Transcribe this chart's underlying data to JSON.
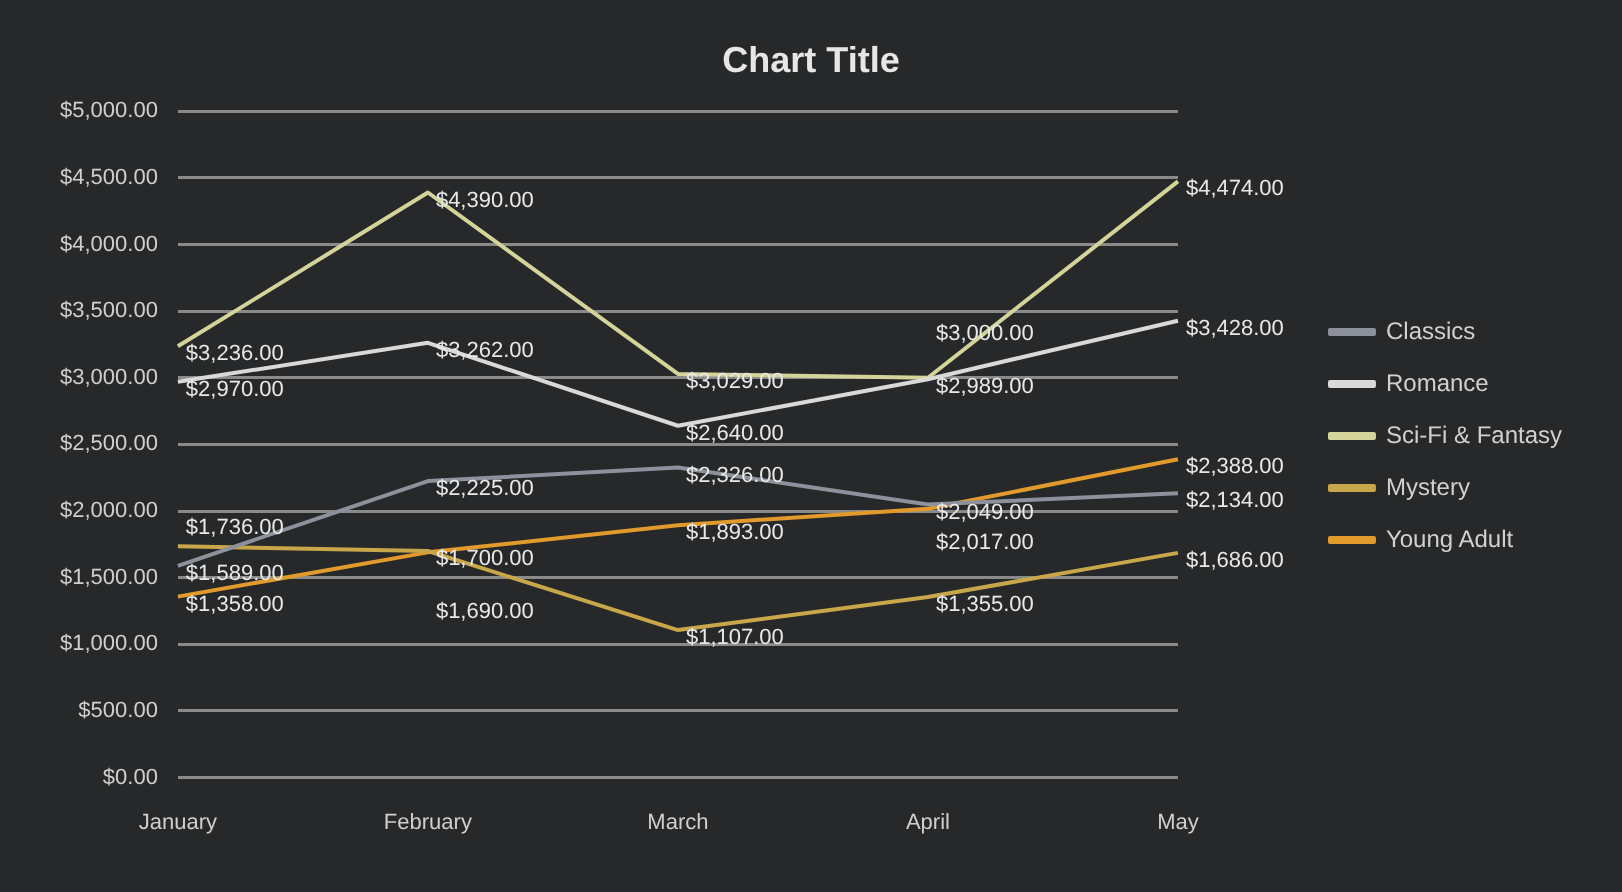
{
  "chart_data": {
    "type": "line",
    "title": "Chart Title",
    "categories": [
      "January",
      "February",
      "March",
      "April",
      "May"
    ],
    "series": [
      {
        "name": "Classics",
        "color": "#8c919b",
        "values": [
          1589,
          2225,
          2326,
          2049,
          2134
        ],
        "value_labels": [
          "$1,589.00",
          "$2,225.00",
          "$2,326.00",
          "$2,049.00",
          "$2,134.00"
        ]
      },
      {
        "name": "Romance",
        "color": "#d9d9d9",
        "values": [
          2970,
          3262,
          2640,
          2989,
          3428
        ],
        "value_labels": [
          "$2,970.00",
          "$3,262.00",
          "$2,640.00",
          "$2,989.00",
          "$3,428.00"
        ]
      },
      {
        "name": "Sci-Fi & Fantasy",
        "color": "#d4d49a",
        "values": [
          3236,
          4390,
          3029,
          3000,
          4474
        ],
        "value_labels": [
          "$3,236.00",
          "$4,390.00",
          "$3,029.00",
          "$3,000.00",
          "$4,474.00"
        ]
      },
      {
        "name": "Mystery",
        "color": "#c8a64a",
        "values": [
          1736,
          1700,
          1107,
          1355,
          1686
        ],
        "value_labels": [
          "$1,736.00",
          "$1,700.00",
          "$1,107.00",
          "$1,355.00",
          "$1,686.00"
        ]
      },
      {
        "name": "Young Adult",
        "color": "#e39a2c",
        "values": [
          1358,
          1690,
          1893,
          2017,
          2388
        ],
        "value_labels": [
          "$1,358.00",
          "$1,690.00",
          "$1,893.00",
          "$2,017.00",
          "$2,388.00"
        ]
      }
    ],
    "ylim": [
      0,
      5000
    ],
    "yticks": [
      {
        "value": 0,
        "label": "$0.00"
      },
      {
        "value": 500,
        "label": "$500.00"
      },
      {
        "value": 1000,
        "label": "$1,000.00"
      },
      {
        "value": 1500,
        "label": "$1,500.00"
      },
      {
        "value": 2000,
        "label": "$2,000.00"
      },
      {
        "value": 2500,
        "label": "$2,500.00"
      },
      {
        "value": 3000,
        "label": "$3,000.00"
      },
      {
        "value": 3500,
        "label": "$3,500.00"
      },
      {
        "value": 4000,
        "label": "$4,000.00"
      },
      {
        "value": 4500,
        "label": "$4,500.00"
      },
      {
        "value": 5000,
        "label": "$5,000.00"
      }
    ],
    "grid": "y",
    "legend": "right",
    "marker": "none",
    "line_style": "solid"
  }
}
